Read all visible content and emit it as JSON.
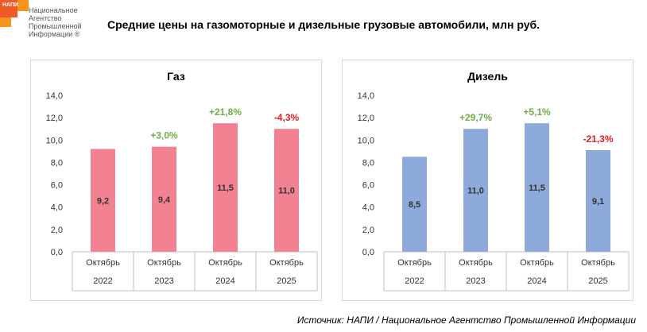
{
  "logo": {
    "abbr": "НАПИ",
    "name_lines": [
      "Национальное",
      "Агентство",
      "Промышленной",
      "Информации ®"
    ]
  },
  "title": "Средние цены на газомоторные и дизельные грузовые автомобили, млн руб.",
  "source": "Источник: НАПИ / Национальное Агентство Промышленной Информации",
  "colors": {
    "gas": "#f28291",
    "diesel": "#8eaadb",
    "positive": "#70ad47",
    "negative": "#e8191f"
  },
  "chart_data": [
    {
      "type": "bar",
      "title": "Газ",
      "categories": [
        [
          "Октябрь",
          "2022"
        ],
        [
          "Октябрь",
          "2023"
        ],
        [
          "Октябрь",
          "2024"
        ],
        [
          "Октябрь",
          "2025"
        ]
      ],
      "values": [
        9.2,
        9.4,
        11.5,
        11.0
      ],
      "value_labels": [
        "9,2",
        "9,4",
        "11,5",
        "11,0"
      ],
      "changes": [
        "",
        "+3,0%",
        "+21,8%",
        "-4,3%"
      ],
      "ylim": [
        0,
        14
      ],
      "yticks": [
        "0,0",
        "2,0",
        "4,0",
        "6,0",
        "8,0",
        "10,0",
        "12,0",
        "14,0"
      ],
      "color": "#f28291"
    },
    {
      "type": "bar",
      "title": "Дизель",
      "categories": [
        [
          "Октябрь",
          "2022"
        ],
        [
          "Октябрь",
          "2023"
        ],
        [
          "Октябрь",
          "2024"
        ],
        [
          "Октябрь",
          "2025"
        ]
      ],
      "values": [
        8.5,
        11.0,
        11.5,
        9.1
      ],
      "value_labels": [
        "8,5",
        "11,0",
        "11,5",
        "9,1"
      ],
      "changes": [
        "",
        "+29,7%",
        "+5,1%",
        "-21,3%"
      ],
      "ylim": [
        0,
        14
      ],
      "yticks": [
        "0,0",
        "2,0",
        "4,0",
        "6,0",
        "8,0",
        "10,0",
        "12,0",
        "14,0"
      ],
      "color": "#8eaadb"
    }
  ]
}
